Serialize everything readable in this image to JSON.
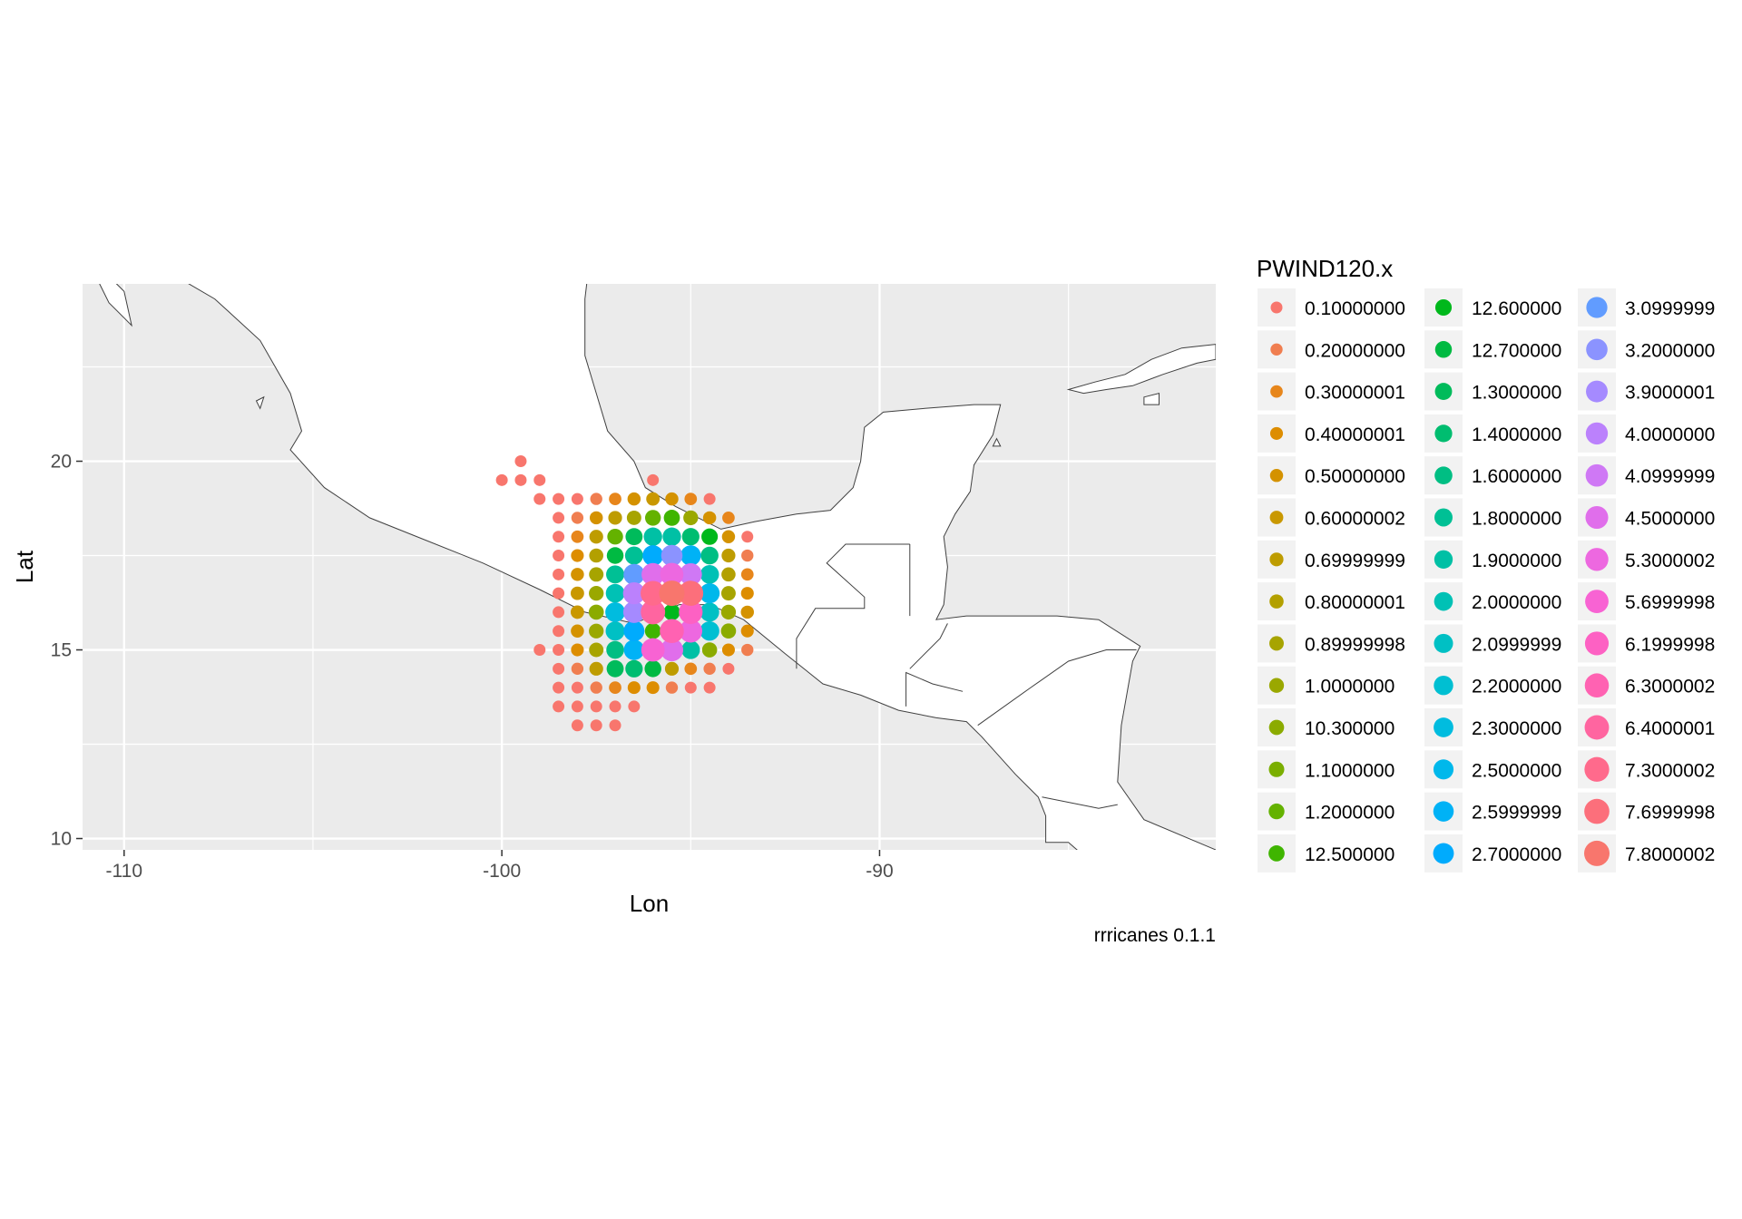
{
  "chart_data": {
    "type": "scatter",
    "title": "",
    "xlabel": "Lon",
    "ylabel": "Lat",
    "caption": "rrricanes 0.1.1",
    "xlim": [
      -111.1,
      -81.1
    ],
    "ylim": [
      9.7,
      24.7
    ],
    "x_ticks": [
      -110,
      -100,
      -90
    ],
    "x_tick_labels": [
      "-110",
      "-100",
      "-90"
    ],
    "y_ticks": [
      10,
      15,
      20
    ],
    "y_tick_labels": [
      "10",
      "15",
      "20"
    ],
    "grid": true,
    "background_color": "#ebebeb",
    "grid_color": "#ffffff",
    "land_fill": "#ffffff",
    "land_outline": "#404040",
    "legend": {
      "title": "PWIND120.x",
      "placement": "right",
      "entries": [
        {
          "label": "0.10000000",
          "color": "#f8766d"
        },
        {
          "label": "0.20000000",
          "color": "#f07e50"
        },
        {
          "label": "0.30000001",
          "color": "#e7861b"
        },
        {
          "label": "0.40000001",
          "color": "#dd8d00"
        },
        {
          "label": "0.50000000",
          "color": "#d49200"
        },
        {
          "label": "0.60000002",
          "color": "#c99800"
        },
        {
          "label": "0.69999999",
          "color": "#be9c00"
        },
        {
          "label": "0.80000001",
          "color": "#b3a000"
        },
        {
          "label": "0.89999998",
          "color": "#a7a400"
        },
        {
          "label": "1.0000000",
          "color": "#9aa800"
        },
        {
          "label": "10.300000",
          "color": "#8bab00"
        },
        {
          "label": "1.1000000",
          "color": "#7aae00"
        },
        {
          "label": "1.2000000",
          "color": "#64b200"
        },
        {
          "label": "12.500000",
          "color": "#3fb500"
        },
        {
          "label": "12.600000",
          "color": "#00b81c"
        },
        {
          "label": "12.700000",
          "color": "#00ba42"
        },
        {
          "label": "1.3000000",
          "color": "#00bb5b"
        },
        {
          "label": "1.4000000",
          "color": "#00bd70"
        },
        {
          "label": "1.6000000",
          "color": "#00be83"
        },
        {
          "label": "1.8000000",
          "color": "#00c095"
        },
        {
          "label": "1.9000000",
          "color": "#00c0a5"
        },
        {
          "label": "2.0000000",
          "color": "#00c1b5"
        },
        {
          "label": "2.0999999",
          "color": "#00c0c4"
        },
        {
          "label": "2.2000000",
          "color": "#00bfd2"
        },
        {
          "label": "2.3000000",
          "color": "#00bcdf"
        },
        {
          "label": "2.5000000",
          "color": "#00b8eb"
        },
        {
          "label": "2.5999999",
          "color": "#00b2f6"
        },
        {
          "label": "2.7000000",
          "color": "#00abfd"
        },
        {
          "label": "3.0999999",
          "color": "#619cff"
        },
        {
          "label": "3.2000000",
          "color": "#8b93ff"
        },
        {
          "label": "3.9000001",
          "color": "#a58aff"
        },
        {
          "label": "4.0000000",
          "color": "#bb81fc"
        },
        {
          "label": "4.0999999",
          "color": "#cf78f5"
        },
        {
          "label": "4.5000000",
          "color": "#e06eeb"
        },
        {
          "label": "5.3000002",
          "color": "#ed68e0"
        },
        {
          "label": "5.6999998",
          "color": "#f863d3"
        },
        {
          "label": "6.1999998",
          "color": "#fd61c3"
        },
        {
          "label": "6.3000002",
          "color": "#ff62b2"
        },
        {
          "label": "6.4000001",
          "color": "#ff65a0"
        },
        {
          "label": "7.3000002",
          "color": "#ff6a8c"
        },
        {
          "label": "7.6999998",
          "color": "#fc6f7b"
        },
        {
          "label": "7.8000002",
          "color": "#f8766d"
        }
      ]
    },
    "grid_points": {
      "lon_start": -100.5,
      "lat_start": 13.0,
      "step": 0.5,
      "note_levels": "rows listed from south (13.0) to north (20.0), columns from west (-100.5) to east (-93.5); each value is an index into legend.entries, -1 = no point",
      "rows": [
        [
          -1,
          -1,
          -1,
          -1,
          -1,
          0,
          0,
          0,
          -1,
          -1,
          -1,
          -1,
          -1,
          -1,
          -1
        ],
        [
          -1,
          -1,
          -1,
          -1,
          0,
          0,
          0,
          0,
          0,
          -1,
          -1,
          -1,
          -1,
          -1,
          -1
        ],
        [
          -1,
          -1,
          -1,
          -1,
          0,
          0,
          1,
          2,
          3,
          3,
          1,
          0,
          0,
          -1,
          -1
        ],
        [
          -1,
          -1,
          -1,
          -1,
          0,
          1,
          6,
          16,
          17,
          15,
          6,
          2,
          1,
          0,
          -1
        ],
        [
          -1,
          -1,
          -1,
          0,
          0,
          3,
          8,
          18,
          26,
          35,
          33,
          20,
          10,
          3,
          1
        ],
        [
          -1,
          -1,
          -1,
          -1,
          0,
          4,
          9,
          22,
          27,
          13,
          37,
          34,
          23,
          10,
          3
        ],
        [
          -1,
          -1,
          -1,
          -1,
          0,
          5,
          10,
          24,
          30,
          38,
          14,
          36,
          22,
          9,
          4
        ],
        [
          -1,
          -1,
          -1,
          -1,
          0,
          5,
          9,
          21,
          31,
          39,
          41,
          40,
          25,
          8,
          3
        ],
        [
          -1,
          -1,
          -1,
          -1,
          0,
          4,
          8,
          19,
          28,
          33,
          34,
          32,
          21,
          7,
          2
        ],
        [
          -1,
          -1,
          -1,
          -1,
          0,
          3,
          7,
          15,
          19,
          27,
          29,
          26,
          18,
          6,
          1
        ],
        [
          -1,
          -1,
          -1,
          -1,
          0,
          2,
          6,
          12,
          16,
          20,
          20,
          17,
          14,
          4,
          0
        ],
        [
          -1,
          -1,
          -1,
          -1,
          0,
          1,
          4,
          6,
          8,
          12,
          13,
          9,
          4,
          2,
          -1
        ],
        [
          -1,
          -1,
          -1,
          0,
          0,
          0,
          1,
          2,
          4,
          5,
          4,
          2,
          0,
          -1,
          -1
        ],
        [
          -1,
          0,
          0,
          0,
          -1,
          -1,
          -1,
          -1,
          -1,
          0,
          -1,
          -1,
          -1,
          -1,
          -1
        ],
        [
          -1,
          -1,
          0,
          -1,
          -1,
          -1,
          -1,
          -1,
          -1,
          -1,
          -1,
          -1,
          -1,
          -1,
          -1
        ]
      ]
    }
  }
}
